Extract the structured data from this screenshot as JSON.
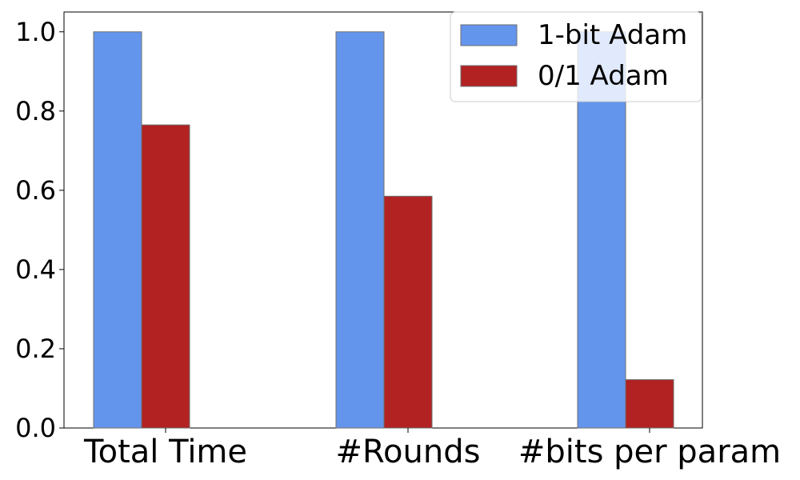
{
  "chart_data": {
    "type": "bar",
    "title": "",
    "xlabel": "",
    "ylabel": "",
    "categories": [
      "Total Time",
      "#Rounds",
      "#bits per param"
    ],
    "series": [
      {
        "name": "1-bit Adam",
        "values": [
          1.0,
          1.0,
          1.0
        ],
        "color": "#6495ED"
      },
      {
        "name": "0/1 Adam",
        "values": [
          0.765,
          0.585,
          0.122
        ],
        "color": "#B22222"
      }
    ],
    "ylim": [
      0,
      1.05
    ],
    "yticks": [
      "0.0",
      "0.2",
      "0.4",
      "0.6",
      "0.8",
      "1.0"
    ],
    "grid": false,
    "legend_position": "top-right"
  }
}
